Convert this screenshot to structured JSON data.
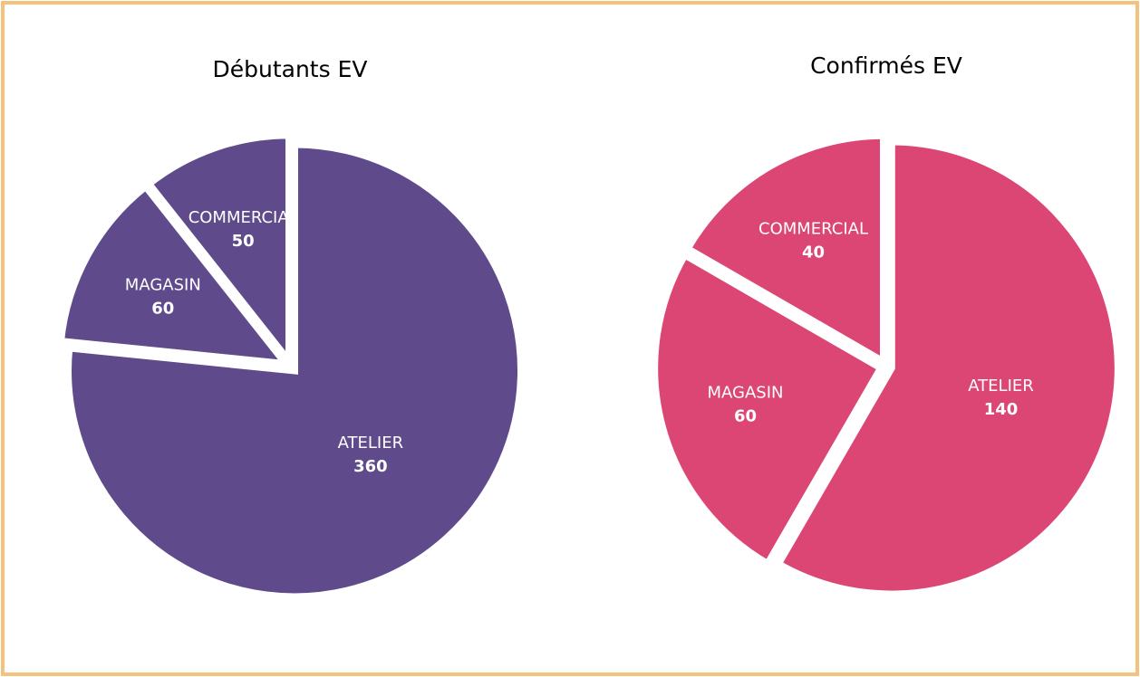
{
  "chart_data": [
    {
      "type": "pie",
      "title": "Débutants EV",
      "categories": [
        "ATELIER",
        "MAGASIN",
        "COMMERCIAL"
      ],
      "values": [
        360,
        60,
        50
      ],
      "color": "#5f4a8b"
    },
    {
      "type": "pie",
      "title": "Confirmés EV",
      "categories": [
        "ATELIER",
        "MAGASIN",
        "COMMERCIAL"
      ],
      "values": [
        140,
        60,
        40
      ],
      "color": "#dc4674"
    }
  ]
}
